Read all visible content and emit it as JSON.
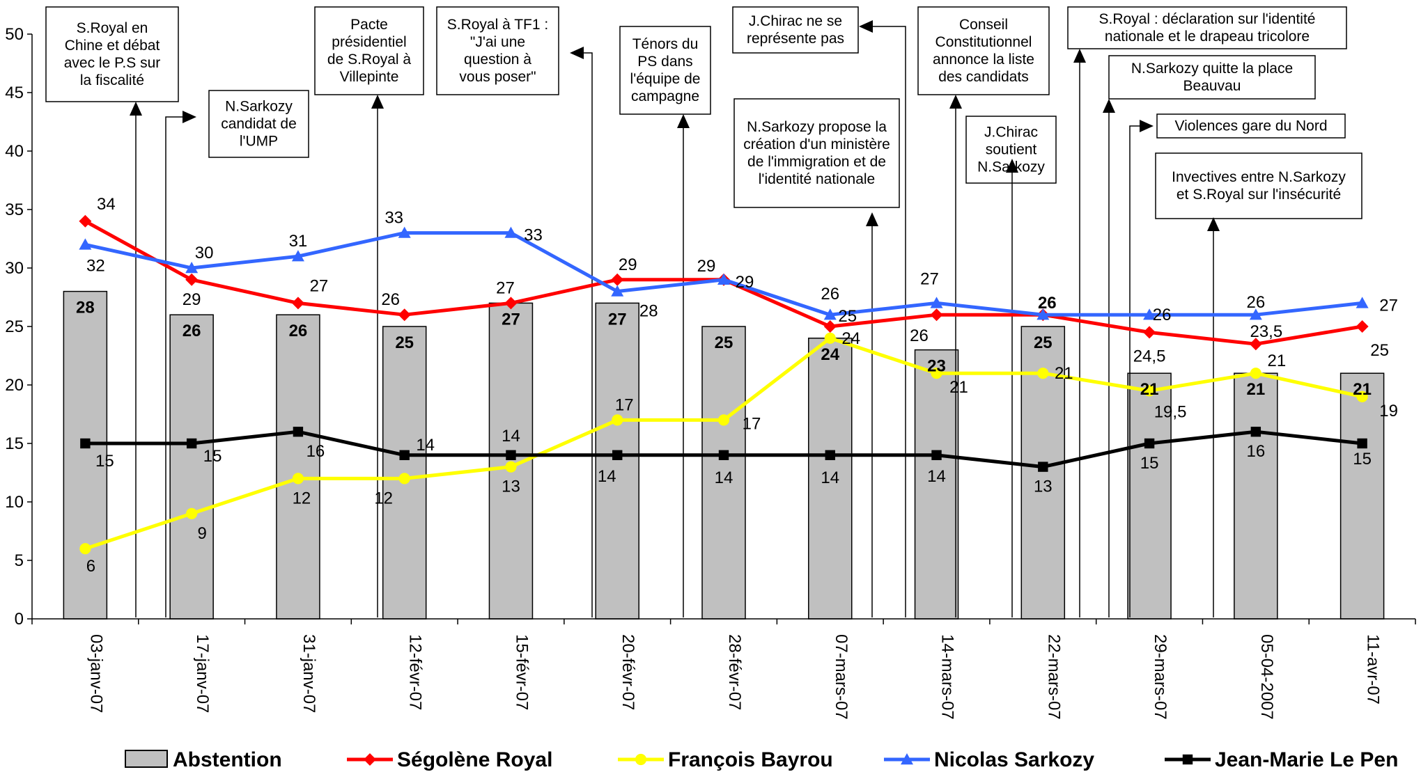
{
  "chart_data": {
    "type": "bar",
    "categories": [
      "03-janv-07",
      "17-janv-07",
      "31-janv-07",
      "12-févr-07",
      "15-févr-07",
      "20-févr-07",
      "28-févr-07",
      "07-mars-07",
      "14-mars-07",
      "22-mars-07",
      "29-mars-07",
      "05-04-2007",
      "11-avr-07"
    ],
    "ylim": [
      0,
      50
    ],
    "yticks": [
      0,
      5,
      10,
      15,
      20,
      25,
      30,
      35,
      40,
      45,
      50
    ],
    "grid": false,
    "legend_position": "bottom",
    "bars": {
      "name": "Abstention",
      "color": "#c0c0c0",
      "values": [
        28,
        26,
        26,
        25,
        27,
        27,
        25,
        24,
        23,
        25,
        21,
        21,
        21
      ],
      "labels": [
        "28",
        "26",
        "26",
        "25",
        "27",
        "27",
        "25",
        "24",
        "23",
        "25",
        "21",
        "21",
        "21"
      ]
    },
    "series": [
      {
        "name": "Ségolène Royal",
        "type": "line",
        "color": "#ff0000",
        "marker": "diamond",
        "values": [
          34,
          29,
          27,
          26,
          27,
          29,
          29,
          25,
          26,
          26,
          24.5,
          23.5,
          25
        ],
        "labels": [
          "34",
          "29",
          "27",
          "26",
          "27",
          "29",
          "29",
          "25",
          "26",
          "26",
          "24,5",
          "23,5",
          "25"
        ]
      },
      {
        "name": "François Bayrou",
        "type": "line",
        "color": "#ffff00",
        "marker": "circle",
        "values": [
          6,
          9,
          12,
          12,
          13,
          17,
          17,
          24,
          21,
          21,
          19.5,
          21,
          19
        ],
        "labels": [
          "6",
          "9",
          "12",
          "12",
          "13",
          "17",
          "17",
          "24",
          "21",
          "21",
          "19,5",
          "21",
          "19"
        ]
      },
      {
        "name": "Nicolas Sarkozy",
        "type": "line",
        "color": "#3366ff",
        "marker": "triangle",
        "values": [
          32,
          30,
          31,
          33,
          33,
          28,
          29,
          26,
          27,
          26,
          26,
          26,
          27
        ],
        "labels": [
          "32",
          "30",
          "31",
          "33",
          "33",
          "28",
          "29",
          "26",
          "27",
          "26",
          "26",
          "26",
          "27"
        ]
      },
      {
        "name": "Jean-Marie Le Pen",
        "type": "line",
        "color": "#000000",
        "marker": "square",
        "values": [
          15,
          15,
          16,
          14,
          14,
          14,
          14,
          14,
          14,
          13,
          15,
          16,
          15
        ],
        "labels": [
          "15",
          "15",
          "16",
          "14",
          "14",
          "14",
          "14",
          "14",
          "14",
          "13",
          "15",
          "16",
          "15"
        ]
      }
    ],
    "annotations": [
      {
        "lines": [
          "S.Royal en",
          "Chine et débat",
          "avec le P.S sur",
          "la fiscalité"
        ]
      },
      {
        "lines": [
          "N.Sarkozy",
          "candidat de",
          "l'UMP"
        ]
      },
      {
        "lines": [
          "Pacte",
          "présidentiel",
          "de S.Royal à",
          "Villepinte"
        ]
      },
      {
        "lines": [
          "S.Royal à TF1 :",
          "\"J'ai une",
          "question à",
          "vous poser\""
        ]
      },
      {
        "lines": [
          "Ténors du",
          "PS dans",
          "l'équipe de",
          "campagne"
        ]
      },
      {
        "lines": [
          "J.Chirac ne se",
          "représente pas"
        ]
      },
      {
        "lines": [
          "N.Sarkozy propose la",
          "création d'un ministère",
          "de l'immigration et de",
          "l'identité nationale"
        ]
      },
      {
        "lines": [
          "Conseil",
          "Constitutionnel",
          "annonce la liste",
          "des candidats"
        ]
      },
      {
        "lines": [
          "J.Chirac",
          "soutient",
          "N.Sarkozy"
        ]
      },
      {
        "lines": [
          "S.Royal : déclaration sur l'identité",
          "nationale et le drapeau tricolore"
        ]
      },
      {
        "lines": [
          "N.Sarkozy quitte la place",
          "Beauvau"
        ]
      },
      {
        "lines": [
          "Violences gare du Nord"
        ]
      },
      {
        "lines": [
          "Invectives entre N.Sarkozy",
          "et S.Royal sur l'insécurité"
        ]
      }
    ]
  }
}
